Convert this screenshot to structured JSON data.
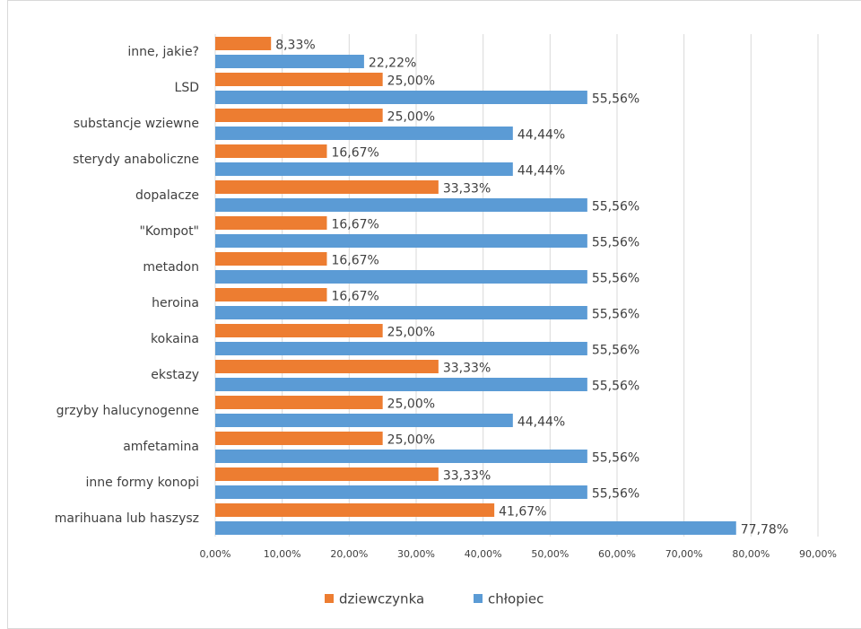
{
  "chart_data": {
    "type": "bar",
    "orientation": "horizontal",
    "categories": [
      "inne, jakie?",
      "LSD",
      "substancje wziewne",
      "sterydy anaboliczne",
      "dopalacze",
      "\"Kompot\"",
      "metadon",
      "heroina",
      "kokaina",
      "ekstazy",
      "grzyby halucynogenne",
      "amfetamina",
      "inne formy konopi",
      "marihuana lub haszysz"
    ],
    "series": [
      {
        "name": "dziewczynka",
        "color": "#ed7d31",
        "values": [
          8.33,
          25,
          25,
          16.67,
          33.33,
          16.67,
          16.67,
          16.67,
          25,
          33.33,
          25,
          25,
          33.33,
          41.67
        ],
        "value_labels": [
          "8,33%",
          "25,00%",
          "25,00%",
          "16,67%",
          "33,33%",
          "16,67%",
          "16,67%",
          "16,67%",
          "25,00%",
          "33,33%",
          "25,00%",
          "25,00%",
          "33,33%",
          "41,67%"
        ]
      },
      {
        "name": "chłopiec",
        "color": "#5b9bd5",
        "values": [
          22.22,
          55.56,
          44.44,
          44.44,
          55.56,
          55.56,
          55.56,
          55.56,
          55.56,
          55.56,
          44.44,
          55.56,
          55.56,
          77.78
        ],
        "value_labels": [
          "22,22%",
          "55,56%",
          "44,44%",
          "44,44%",
          "55,56%",
          "55,56%",
          "55,56%",
          "55,56%",
          "55,56%",
          "55,56%",
          "44,44%",
          "55,56%",
          "55,56%",
          "77,78%"
        ]
      }
    ],
    "xlim": [
      0,
      90
    ],
    "xticks": [
      {
        "value": 0,
        "label": "0,00%"
      },
      {
        "value": 10,
        "label": "10,00%"
      },
      {
        "value": 20,
        "label": "20,00%"
      },
      {
        "value": 30,
        "label": "30,00%"
      },
      {
        "value": 40,
        "label": "40,00%"
      },
      {
        "value": 50,
        "label": "50,00%"
      },
      {
        "value": 60,
        "label": "60,00%"
      },
      {
        "value": 70,
        "label": "70,00%"
      },
      {
        "value": 80,
        "label": "80,00%"
      },
      {
        "value": 90,
        "label": "90,00%"
      }
    ],
    "grid": true,
    "legend": "bottom"
  }
}
